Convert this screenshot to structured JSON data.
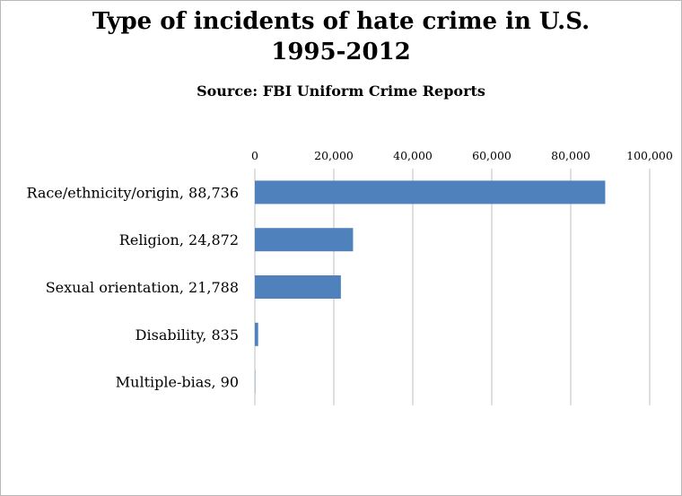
{
  "chart_data": {
    "type": "bar",
    "orientation": "horizontal",
    "title_line1": "Type of incidents of hate crime in U.S.",
    "title_line2": "1995-2012",
    "subtitle": "Source: FBI Uniform Crime Reports",
    "category_labels": [
      "Race/ethnicity/origin, 88,736",
      "Religion, 24,872",
      "Sexual orientation, 21,788",
      "Disability, 835",
      "Multiple-bias, 90"
    ],
    "values": [
      88736,
      24872,
      21788,
      835,
      90
    ],
    "xlim": [
      0,
      100000
    ],
    "ticks": [
      0,
      20000,
      40000,
      60000,
      80000,
      100000
    ],
    "tick_labels": [
      "0",
      "20,000",
      "40,000",
      "60,000",
      "80,000",
      "100,000"
    ],
    "x_axis_position": "top",
    "grid": true,
    "bar_color": "#4f81bd",
    "grid_color": "#bfbfbf"
  }
}
